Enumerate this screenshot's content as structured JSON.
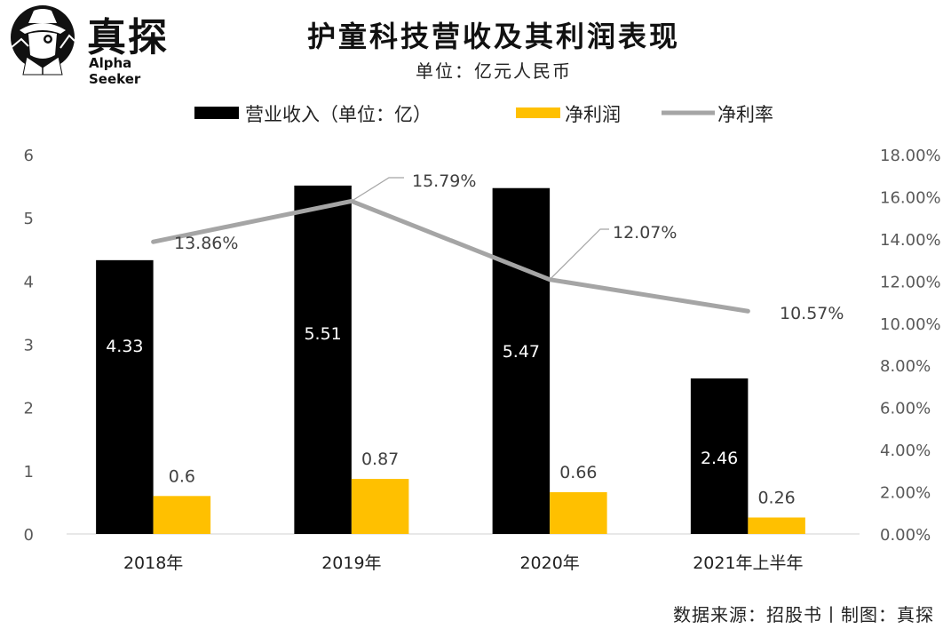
{
  "brand": {
    "name_cn": "真探",
    "name_en": "Alpha Seeker"
  },
  "header": {
    "title": "护童科技营收及其利润表现",
    "subtitle": "单位：亿元人民币"
  },
  "footer": {
    "source": "数据来源：招股书丨制图：真探"
  },
  "colors": {
    "revenue": "#000000",
    "profit": "#FFC000",
    "margin": "#A5A5A5"
  },
  "chart_data": {
    "type": "bar",
    "title": "护童科技营收及其利润表现",
    "subtitle": "单位：亿元人民币",
    "categories": [
      "2018年",
      "2019年",
      "2020年",
      "2021年上半年"
    ],
    "series": [
      {
        "name": "营业收入（单位：亿）",
        "type": "bar",
        "axis": "left",
        "values": [
          4.33,
          5.51,
          5.47,
          2.46
        ],
        "labels": [
          "4.33",
          "5.51",
          "5.47",
          "2.46"
        ]
      },
      {
        "name": "净利润",
        "type": "bar",
        "axis": "left",
        "values": [
          0.6,
          0.87,
          0.66,
          0.26
        ],
        "labels": [
          "0.6",
          "0.87",
          "0.66",
          "0.26"
        ]
      },
      {
        "name": "净利率",
        "type": "line",
        "axis": "right",
        "values": [
          13.86,
          15.79,
          12.07,
          10.57
        ],
        "labels": [
          "13.86%",
          "15.79%",
          "12.07%",
          "10.57%"
        ]
      }
    ],
    "left_axis": {
      "range": [
        0,
        6
      ],
      "ticks": [
        "0",
        "1",
        "2",
        "3",
        "4",
        "5",
        "6"
      ]
    },
    "right_axis": {
      "range": [
        0,
        18
      ],
      "ticks": [
        "0.00%",
        "2.00%",
        "4.00%",
        "6.00%",
        "8.00%",
        "10.00%",
        "12.00%",
        "14.00%",
        "16.00%",
        "18.00%"
      ]
    },
    "xlabel": "",
    "ylabel": "",
    "grid": false,
    "legend": "top"
  }
}
